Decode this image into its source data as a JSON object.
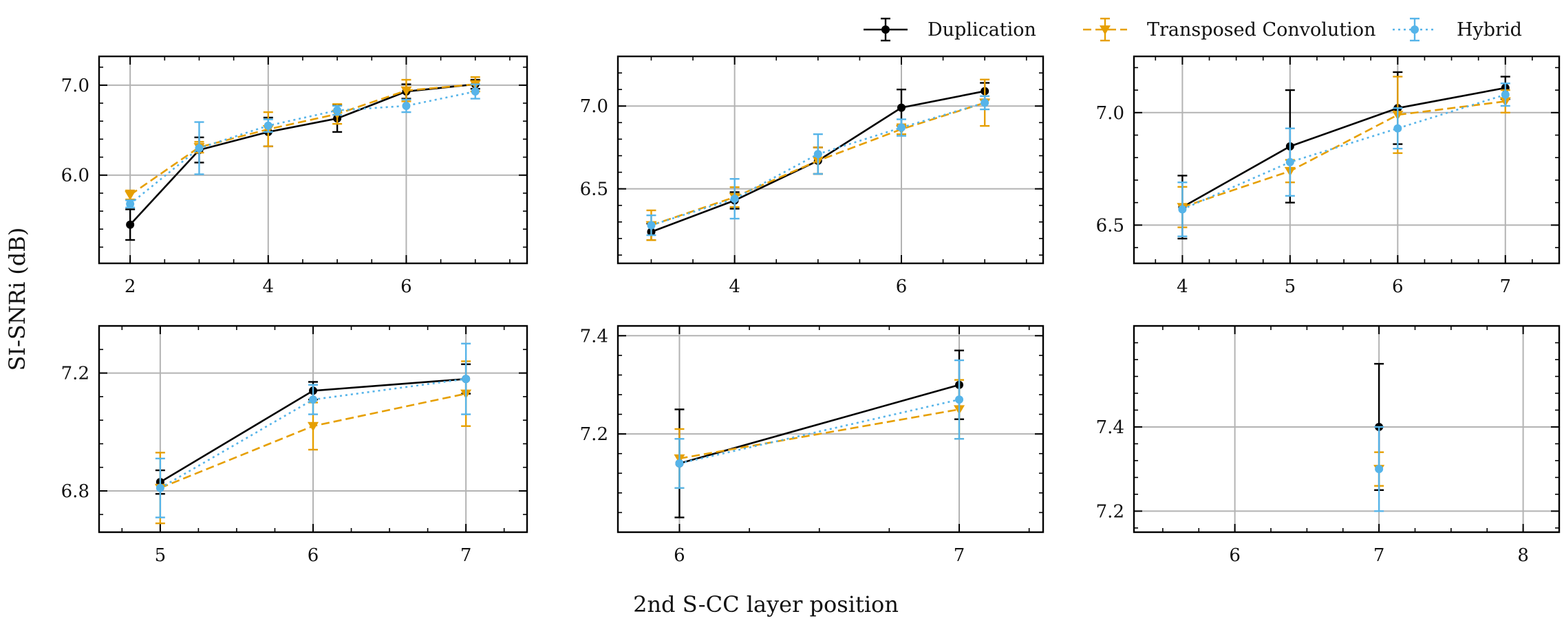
{
  "figure": {
    "ylabel": "SI-SNRi (dB)",
    "xlabel": "2nd S-CC layer position"
  },
  "legend": [
    {
      "name": "Duplication",
      "color": "#000000",
      "dash": "solid",
      "marker": "circle"
    },
    {
      "name": "Transposed Convolution",
      "color": "#E69F00",
      "dash": "dashed",
      "marker": "triangle-down"
    },
    {
      "name": "Hybrid",
      "color": "#56B4E9",
      "dash": "dotted",
      "marker": "circle"
    }
  ],
  "chart_data": [
    {
      "type": "line",
      "xlim": [
        1.55,
        7.75
      ],
      "ylim": [
        5.02,
        7.32
      ],
      "xticks": [
        2,
        4,
        6
      ],
      "yticks": [
        6.0,
        7.0
      ],
      "ytick_labels": [
        "6.0",
        "7.0"
      ],
      "series": [
        {
          "name": "Duplication",
          "x": [
            2,
            3,
            4,
            5,
            6,
            7
          ],
          "y": [
            5.45,
            6.28,
            6.48,
            6.63,
            6.93,
            7.01
          ],
          "err": [
            0.17,
            0.14,
            0.16,
            0.15,
            0.08,
            0.05
          ]
        },
        {
          "name": "Transposed Convolution",
          "x": [
            2,
            3,
            4,
            5,
            6,
            7
          ],
          "y": [
            5.78,
            6.31,
            6.51,
            6.68,
            6.94,
            7.01
          ],
          "err": [
            0.05,
            0.06,
            0.19,
            0.11,
            0.12,
            0.08
          ]
        },
        {
          "name": "Hybrid",
          "x": [
            2,
            3,
            4,
            5,
            6,
            7
          ],
          "y": [
            5.68,
            6.3,
            6.55,
            6.72,
            6.77,
            6.93
          ],
          "err": [
            0.04,
            0.29,
            0.07,
            0.05,
            0.07,
            0.08
          ]
        }
      ]
    },
    {
      "type": "line",
      "xlim": [
        2.6,
        7.7
      ],
      "ylim": [
        6.05,
        7.3
      ],
      "xticks": [
        4,
        6
      ],
      "yticks": [
        6.5,
        7.0
      ],
      "ytick_labels": [
        "6.5",
        "7.0"
      ],
      "series": [
        {
          "name": "Duplication",
          "x": [
            3,
            4,
            5,
            6,
            7
          ],
          "y": [
            6.24,
            6.43,
            6.67,
            6.99,
            7.09
          ],
          "err": [
            0.05,
            0.05,
            0.08,
            0.11,
            0.05
          ]
        },
        {
          "name": "Transposed Convolution",
          "x": [
            3,
            4,
            5,
            6,
            7
          ],
          "y": [
            6.28,
            6.45,
            6.67,
            6.86,
            7.02
          ],
          "err": [
            0.09,
            0.06,
            0.08,
            0.03,
            0.14
          ]
        },
        {
          "name": "Hybrid",
          "x": [
            3,
            4,
            5,
            6,
            7
          ],
          "y": [
            6.28,
            6.44,
            6.71,
            6.87,
            7.02
          ],
          "err": [
            0.06,
            0.12,
            0.12,
            0.05,
            0.04
          ]
        }
      ]
    },
    {
      "type": "line",
      "xlim": [
        3.55,
        7.5
      ],
      "ylim": [
        6.33,
        7.25
      ],
      "xticks": [
        4,
        5,
        6,
        7
      ],
      "yticks": [
        6.5,
        7.0
      ],
      "ytick_labels": [
        "6.5",
        "7.0"
      ],
      "series": [
        {
          "name": "Duplication",
          "x": [
            4,
            5,
            6,
            7
          ],
          "y": [
            6.58,
            6.85,
            7.02,
            7.11
          ],
          "err": [
            0.14,
            0.25,
            0.16,
            0.05
          ]
        },
        {
          "name": "Transposed Convolution",
          "x": [
            4,
            5,
            6,
            7
          ],
          "y": [
            6.58,
            6.74,
            6.99,
            7.05
          ],
          "err": [
            0.09,
            0.05,
            0.17,
            0.05
          ]
        },
        {
          "name": "Hybrid",
          "x": [
            4,
            5,
            6,
            7
          ],
          "y": [
            6.57,
            6.78,
            6.93,
            7.08
          ],
          "err": [
            0.12,
            0.15,
            0.09,
            0.05
          ]
        }
      ]
    },
    {
      "type": "line",
      "xlim": [
        4.6,
        7.4
      ],
      "ylim": [
        6.66,
        7.36
      ],
      "xticks": [
        5,
        6,
        7
      ],
      "yticks": [
        6.8,
        7.2
      ],
      "ytick_labels": [
        "6.8",
        "7.2"
      ],
      "series": [
        {
          "name": "Duplication",
          "x": [
            5,
            6,
            7
          ],
          "y": [
            6.83,
            7.14,
            7.18
          ],
          "err": [
            0.04,
            0.03,
            0.05
          ]
        },
        {
          "name": "Transposed Convolution",
          "x": [
            5,
            6,
            7
          ],
          "y": [
            6.81,
            7.02,
            7.13
          ],
          "err": [
            0.12,
            0.08,
            0.11
          ]
        },
        {
          "name": "Hybrid",
          "x": [
            5,
            6,
            7
          ],
          "y": [
            6.81,
            7.11,
            7.18
          ],
          "err": [
            0.1,
            0.05,
            0.12
          ]
        }
      ]
    },
    {
      "type": "line",
      "xlim": [
        5.78,
        7.3
      ],
      "ylim": [
        7.0,
        7.42
      ],
      "xticks": [
        6,
        7
      ],
      "yticks": [
        7.2,
        7.4
      ],
      "ytick_labels": [
        "7.2",
        "7.4"
      ],
      "series": [
        {
          "name": "Duplication",
          "x": [
            6,
            7
          ],
          "y": [
            7.14,
            7.3
          ],
          "err": [
            0.11,
            0.07
          ]
        },
        {
          "name": "Transposed Convolution",
          "x": [
            6,
            7
          ],
          "y": [
            7.15,
            7.25
          ],
          "err": [
            0.06,
            0.06
          ]
        },
        {
          "name": "Hybrid",
          "x": [
            6,
            7
          ],
          "y": [
            7.14,
            7.27
          ],
          "err": [
            0.05,
            0.08
          ]
        }
      ]
    },
    {
      "type": "line",
      "xlim": [
        5.3,
        8.25
      ],
      "ylim": [
        7.15,
        7.64
      ],
      "xticks": [
        6,
        7,
        8
      ],
      "yticks": [
        7.2,
        7.4
      ],
      "ytick_labels": [
        "7.2",
        "7.4"
      ],
      "series": [
        {
          "name": "Duplication",
          "x": [
            7
          ],
          "y": [
            7.4
          ],
          "err": [
            0.15
          ]
        },
        {
          "name": "Transposed Convolution",
          "x": [
            7
          ],
          "y": [
            7.3
          ],
          "err": [
            0.04
          ]
        },
        {
          "name": "Hybrid",
          "x": [
            7
          ],
          "y": [
            7.3
          ],
          "err": [
            0.1
          ]
        }
      ]
    }
  ]
}
